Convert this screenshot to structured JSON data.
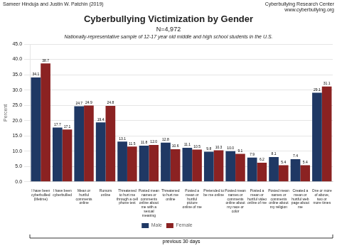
{
  "chart_data": {
    "type": "bar",
    "title": "Cyberbullying Victimization by Gender",
    "subtitle": [
      "N=4,972",
      "Nationally-representative sample of 12-17 year old middle and high school students in the U.S."
    ],
    "annotations": [
      "Sameer Hinduja and Justin W. Patchin (2019)",
      "Cyberbullying Research Center\nwww.cyberbullying.org",
      "previous 30 days"
    ],
    "ylabel": "Percent",
    "categories": [
      "I have been\ncyberbullied\n(lifetime)",
      "I have been\ncyberbullied",
      "Mean or\nhurtful\ncomments\nonline",
      "Rumors\nonline",
      "Threatened\nto hurt me\nthrough a cell\nphone text",
      "Posted mean\nnames or\ncomments\nonline about\nme with a\nsexual\nmeaning",
      "Threatened\nto hurt me\nonline",
      "Posted a\nmean or\nhurtful\npicture\nonline of me",
      "Pretended to\nbe me online",
      "Posted mean\nnames or\ncomments\nonline about\nmy race or\ncolor",
      "Posted a\nmean or\nhurtful video\nonline of me",
      "Posted mean\nnames or\ncomments\nonline about\nmy religion",
      "Created a\nmean or\nhurtful web\npage about\nme",
      "One or more\nof above,\ntwo or\nmore times"
    ],
    "series": [
      {
        "name": "Male",
        "color": "#1F3864",
        "values": [
          34.1,
          17.7,
          24.7,
          19.4,
          13.1,
          11.8,
          12.8,
          11.1,
          9.8,
          10.0,
          7.9,
          8.1,
          7.4,
          29.1
        ],
        "value_labels": [
          "34.1",
          "17.7",
          "24.7",
          "19.4",
          "13.1",
          "11.8",
          "12.8",
          "11.1",
          "9.8",
          "10.0",
          "7.9",
          "8.1",
          "7.4",
          "29.1"
        ]
      },
      {
        "name": "Female",
        "color": "#8B2222",
        "values": [
          38.7,
          17.1,
          24.9,
          24.8,
          11.5,
          12.0,
          10.6,
          10.5,
          10.3,
          9.1,
          6.2,
          5.4,
          5.4,
          31.1
        ],
        "value_labels": [
          "38.7",
          "17.1",
          "24.9",
          "24.8",
          "11.5",
          "12.0",
          "10.6",
          "10.5",
          "10.3",
          "9.1",
          "6.2",
          "5.4",
          "5.4",
          "31.1"
        ]
      }
    ],
    "ylim": [
      0,
      45
    ],
    "yticks": [
      {
        "value": 0,
        "label": "0.0"
      },
      {
        "value": 5,
        "label": "5.0"
      },
      {
        "value": 10,
        "label": "10.0"
      },
      {
        "value": 15,
        "label": "15.0"
      },
      {
        "value": 20,
        "label": "20.0"
      },
      {
        "value": 25,
        "label": "25.0"
      },
      {
        "value": 30,
        "label": "30.0"
      },
      {
        "value": 35,
        "label": "35.0"
      },
      {
        "value": 40,
        "label": "40.0"
      },
      {
        "value": 45,
        "label": "45.0"
      }
    ],
    "grid": true,
    "legend": "bottom",
    "data_labels": true
  }
}
